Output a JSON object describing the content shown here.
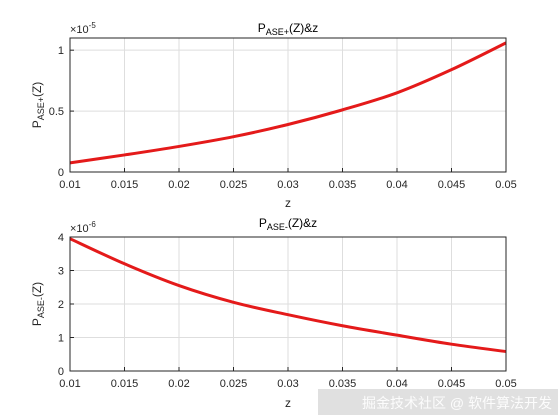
{
  "chart_data": [
    {
      "type": "line",
      "title": "P_ASE+(Z)&z",
      "title_main": "P",
      "title_sub": "ASE+",
      "title_rest": "(Z)&z",
      "xlabel": "z",
      "ylabel_main": "P",
      "ylabel_sub": "ASE+",
      "ylabel_rest": "(Z)",
      "exponent_label": "×10",
      "exponent_power": "-5",
      "xlim": [
        0.01,
        0.05
      ],
      "ylim": [
        0,
        1.1
      ],
      "x_ticks": [
        "0.01",
        "0.015",
        "0.02",
        "0.025",
        "0.03",
        "0.035",
        "0.04",
        "0.045",
        "0.05"
      ],
      "y_ticks": [
        "0",
        "0.5",
        "1"
      ],
      "y_tick_values": [
        0,
        0.5,
        1
      ],
      "grid": true,
      "line_color": "#e41a1a",
      "series": [
        {
          "x": [
            0.01,
            0.015,
            0.02,
            0.025,
            0.03,
            0.035,
            0.04,
            0.045,
            0.05
          ],
          "y": [
            0.075,
            0.14,
            0.21,
            0.29,
            0.39,
            0.51,
            0.65,
            0.84,
            1.06
          ]
        }
      ]
    },
    {
      "type": "line",
      "title": "P_ASE-(Z)&z",
      "title_main": "P",
      "title_sub": "ASE-",
      "title_rest": "(Z)&z",
      "xlabel": "z",
      "ylabel_main": "P",
      "ylabel_sub": "ASE-",
      "ylabel_rest": "(Z)",
      "exponent_label": "×10",
      "exponent_power": "-6",
      "xlim": [
        0.01,
        0.05
      ],
      "ylim": [
        0,
        4
      ],
      "x_ticks": [
        "0.01",
        "0.015",
        "0.02",
        "0.025",
        "0.03",
        "0.035",
        "0.04",
        "0.045",
        "0.05"
      ],
      "y_ticks": [
        "0",
        "1",
        "2",
        "3",
        "4"
      ],
      "y_tick_values": [
        0,
        1,
        2,
        3,
        4
      ],
      "grid": true,
      "line_color": "#e41a1a",
      "series": [
        {
          "x": [
            0.01,
            0.015,
            0.02,
            0.025,
            0.03,
            0.035,
            0.04,
            0.045,
            0.05
          ],
          "y": [
            3.95,
            3.2,
            2.55,
            2.05,
            1.68,
            1.35,
            1.07,
            0.8,
            0.58
          ]
        }
      ]
    }
  ],
  "watermark": "掘金技术社区 @ 软件算法开发"
}
